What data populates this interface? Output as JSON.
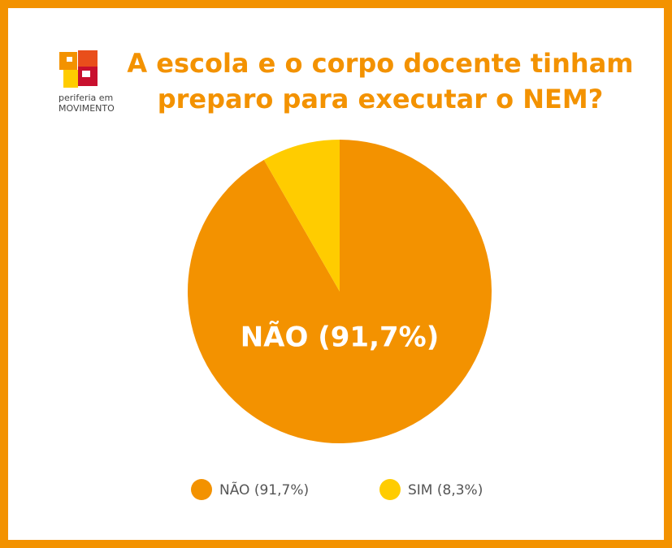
{
  "logo": {
    "line1": "periferia em",
    "line2": "MOVIMENTO"
  },
  "chart_data": {
    "type": "pie",
    "title": "A escola e o corpo docente tinham preparo para executar o NEM?",
    "categories": [
      "NÃO (91,7%)",
      "SIM (8,3%)"
    ],
    "values": [
      91.7,
      8.3
    ],
    "colors": [
      "#f39200",
      "#ffcc00"
    ],
    "legend": "bottom"
  }
}
